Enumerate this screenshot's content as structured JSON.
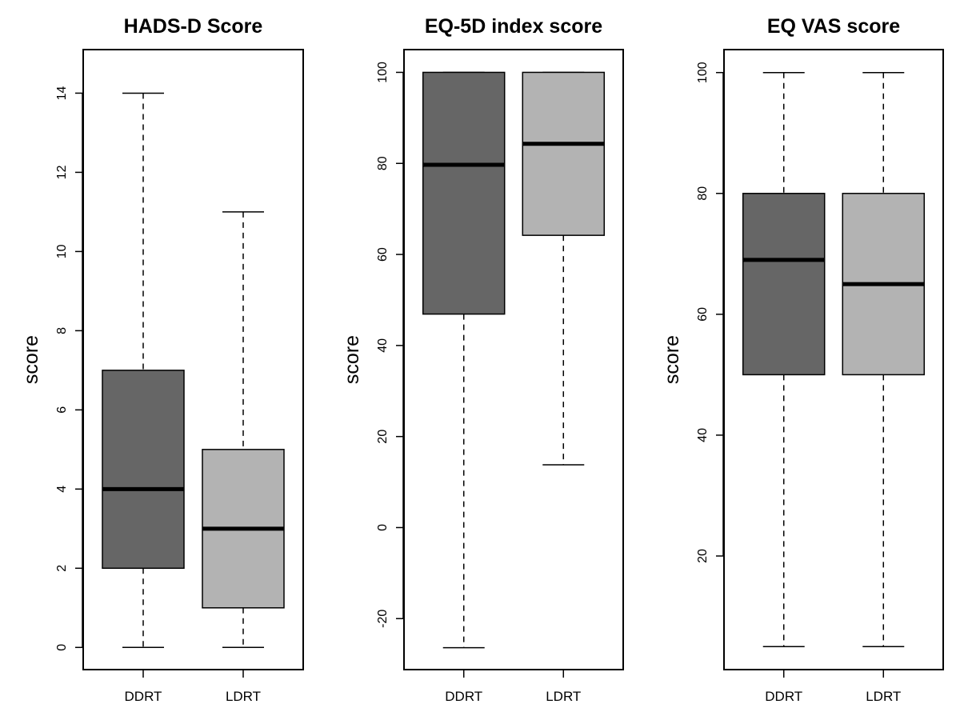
{
  "chart_data": [
    {
      "type": "box",
      "title": "HADS-D Score",
      "ylabel": "score",
      "xlabel": "",
      "categories": [
        "DDRT",
        "LDRT"
      ],
      "ylim": [
        -0.56,
        15.1
      ],
      "yticks": [
        0,
        2,
        4,
        6,
        8,
        10,
        12,
        14
      ],
      "series": [
        {
          "name": "DDRT",
          "min": 0,
          "q1": 2,
          "median": 4,
          "q3": 7,
          "max": 14,
          "fill": "#666666"
        },
        {
          "name": "LDRT",
          "min": 0,
          "q1": 1,
          "median": 3,
          "q3": 5,
          "max": 11,
          "fill": "#b3b3b3"
        }
      ]
    },
    {
      "type": "box",
      "title": "EQ-5D index score",
      "ylabel": "score",
      "xlabel": "",
      "categories": [
        "DDRT",
        "LDRT"
      ],
      "ylim": [
        -31.2,
        105.0
      ],
      "yticks": [
        -20,
        0,
        20,
        40,
        60,
        80,
        100
      ],
      "series": [
        {
          "name": "DDRT",
          "min": -26.4,
          "q1": 46.9,
          "median": 79.7,
          "q3": 100,
          "max": 100,
          "fill": "#666666"
        },
        {
          "name": "LDRT",
          "min": 13.8,
          "q1": 64.2,
          "median": 84.3,
          "q3": 100,
          "max": 100,
          "fill": "#b3b3b3"
        }
      ]
    },
    {
      "type": "box",
      "title": "EQ VAS score",
      "ylabel": "score",
      "xlabel": "",
      "categories": [
        "DDRT",
        "LDRT"
      ],
      "ylim": [
        1.2,
        103.8
      ],
      "yticks": [
        20,
        40,
        60,
        80,
        100
      ],
      "series": [
        {
          "name": "DDRT",
          "min": 5,
          "q1": 50,
          "median": 69,
          "q3": 80,
          "max": 100,
          "fill": "#666666"
        },
        {
          "name": "LDRT",
          "min": 5,
          "q1": 50,
          "median": 65,
          "q3": 80,
          "max": 100,
          "fill": "#b3b3b3"
        }
      ]
    }
  ]
}
